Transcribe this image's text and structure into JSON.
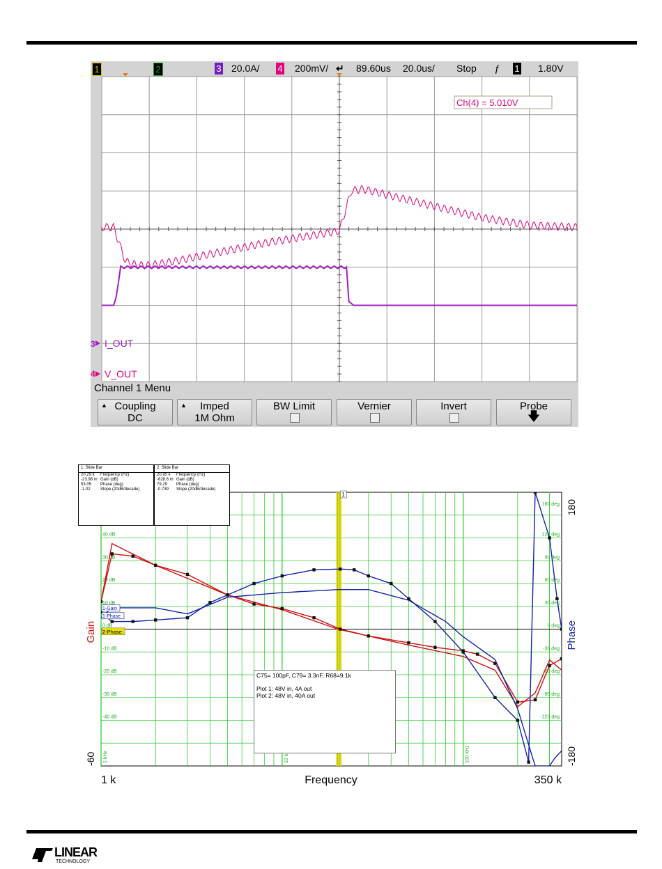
{
  "scope": {
    "status": {
      "ch1_num": "1",
      "ch2_num": "2",
      "ch3_num": "3",
      "ch3_scale": "20.0A/",
      "ch4_num": "4",
      "ch4_scale": "200mV/",
      "time_offset": "89.60us",
      "time_scale": "20.0us/",
      "run_state": "Stop",
      "trig_ch": "1",
      "trig_level": "1.80V",
      "trig_slope_icon": "rising-edge-icon",
      "colors": {
        "ch1": "#d8c000",
        "ch2": "#20a020",
        "ch3": "#7020c0",
        "ch4": "#e0007a"
      }
    },
    "measurement": "Ch(4) = 5.010V",
    "channel_labels": {
      "i_out_marker": "3",
      "i_out": "I_OUT",
      "v_out_marker": "4",
      "v_out": "V_OUT"
    },
    "menu_title": "Channel 1  Menu",
    "softkeys": [
      {
        "label": "Coupling",
        "value": "DC"
      },
      {
        "label": "Imped",
        "value": "1M Ohm"
      },
      {
        "label": "BW Limit",
        "value": ""
      },
      {
        "label": "Vernier",
        "value": ""
      },
      {
        "label": "Invert",
        "value": ""
      },
      {
        "label": "Probe",
        "value": ""
      }
    ],
    "grid": {
      "divisions_x": 10,
      "divisions_y": 8
    },
    "trace_colors": {
      "v_out": "#e0007a",
      "i_out": "#a020c0"
    },
    "chart_data": {
      "type": "line",
      "x_unit": "us",
      "series": [
        {
          "name": "V_OUT",
          "x": [
            -100,
            -95,
            -90,
            -85,
            -80,
            -70,
            -50,
            -30,
            -10,
            0,
            5,
            10,
            20,
            40,
            60,
            80,
            100
          ],
          "y": [
            0.05,
            0.05,
            -0.85,
            -0.95,
            -0.95,
            -0.85,
            -0.6,
            -0.35,
            -0.15,
            -0.05,
            1.0,
            1.05,
            0.9,
            0.6,
            0.3,
            0.1,
            0.05
          ]
        },
        {
          "name": "I_OUT",
          "x": [
            -100,
            -95,
            -94,
            -92,
            -90,
            -50,
            0,
            3,
            4,
            6,
            100
          ],
          "y": [
            -2.0,
            -2.0,
            -1.8,
            -1.0,
            -1.0,
            -1.0,
            -1.0,
            -1.0,
            -1.9,
            -2.0,
            -2.0
          ]
        }
      ]
    }
  },
  "bode": {
    "slide1": {
      "title": "1: Slide Bar",
      "rows": [
        [
          "20.29 k",
          "Frequency (Hz)"
        ],
        [
          "-23.98 m",
          "Gain (dB)"
        ],
        [
          "53.05",
          "Phase (deg)"
        ],
        [
          "-1.02",
          "Slope (20dB/decade)"
        ]
      ]
    },
    "slide2": {
      "title": "2: Slide Bar",
      "rows": [
        [
          "20.95 k",
          "Frequency (Hz)"
        ],
        [
          "-628.6 m",
          "Gain (dB)"
        ],
        [
          "79.29",
          "Phase (deg)"
        ],
        [
          "-0.739",
          "Slope (20dB/decade)"
        ]
      ]
    },
    "cursor_label": "1",
    "gain_db_labels": [
      "40 dB",
      "30 dB",
      "20 dB",
      "10 dB",
      "0 dB",
      "-10 dB",
      "-20 dB",
      "-30 dB",
      "-40 dB"
    ],
    "phase_deg_labels": [
      "160 deg",
      "120 deg",
      "90 deg",
      "60 deg",
      "30 deg",
      "0 deg",
      "-30 deg",
      "-60 deg",
      "-90 deg",
      "-120 deg"
    ],
    "legend": {
      "gain": "1-Gain",
      "phase": "1-Phase",
      "phase2": "2-Phase"
    },
    "freq_tick_labels": {
      "f1k": "1 kHz",
      "f10k": "10 kHz",
      "f100k": "100 kHz"
    },
    "axes": {
      "gain_label": "Gain",
      "phase_label": "Phase",
      "x_label": "Frequency",
      "x_min": "1 k",
      "x_max": "350 k",
      "left_top": "60",
      "left_bottom": "-60",
      "right_top": "180",
      "right_bottom": "-180"
    },
    "note": {
      "line1": "C75= 100pF, C79= 3.3nF, R68=9.1k",
      "line2": "Plot 1: 48V in, 4A out",
      "line3": "Plot 2: 48V in, 40A out"
    },
    "colors": {
      "gain": "#cc1111",
      "phase": "#1122aa",
      "grid": "#33cc33",
      "cursor": "#e8e000"
    },
    "chart_data": {
      "type": "line",
      "x_scale": "log",
      "xlim": [
        1000,
        350000
      ],
      "ylim_gain": [
        -60,
        60
      ],
      "ylim_phase": [
        -180,
        180
      ],
      "series": [
        {
          "name": "1-Gain",
          "axis": "gain",
          "x": [
            1000,
            1150,
            2000,
            5000,
            10000,
            20300,
            50000,
            100000,
            150000,
            200000,
            250000,
            300000,
            350000
          ],
          "y": [
            12,
            37.5,
            28,
            15,
            8.5,
            0,
            -7,
            -12,
            -18,
            -34,
            -28,
            -13.5,
            -18
          ]
        },
        {
          "name": "2-Gain",
          "axis": "gain",
          "x": [
            1000,
            1150,
            1500,
            2000,
            3000,
            5000,
            7000,
            10000,
            15000,
            20950,
            30000,
            50000,
            70000,
            100000,
            120000,
            150000,
            200000,
            250000,
            300000,
            350000
          ],
          "y": [
            12,
            33,
            32,
            28,
            24,
            15,
            11,
            9,
            5,
            0,
            -3,
            -6,
            -8,
            -9.5,
            -11,
            -15,
            -32,
            -31,
            -16,
            -13
          ]
        },
        {
          "name": "1-Phase",
          "axis": "phase",
          "x": [
            1000,
            1150,
            2000,
            3000,
            5000,
            10000,
            20300,
            30000,
            50000,
            80000,
            100000,
            150000,
            200000,
            250000,
            300000,
            320000,
            350000
          ],
          "y": [
            15,
            28,
            28,
            20,
            42,
            48,
            52,
            52,
            38,
            10,
            -10,
            -40,
            -105,
            -180,
            -180,
            -170,
            -160
          ]
        },
        {
          "name": "2-Phase",
          "axis": "phase",
          "x": [
            1000,
            1150,
            1500,
            2000,
            3000,
            4000,
            5000,
            7000,
            10000,
            15000,
            20950,
            25000,
            30000,
            40000,
            50000,
            70000,
            100000,
            150000,
            200000,
            230000,
            250000,
            300000,
            330000,
            350000
          ],
          "y": [
            22,
            10,
            10,
            12,
            15,
            35,
            45,
            60,
            70,
            78,
            79,
            78,
            70,
            60,
            40,
            10,
            -30,
            -90,
            -120,
            -175,
            180,
            120,
            40,
            0
          ]
        }
      ]
    }
  },
  "footer": {
    "brand_line1": "LINEAR",
    "brand_line2": "TECHNOLOGY"
  }
}
